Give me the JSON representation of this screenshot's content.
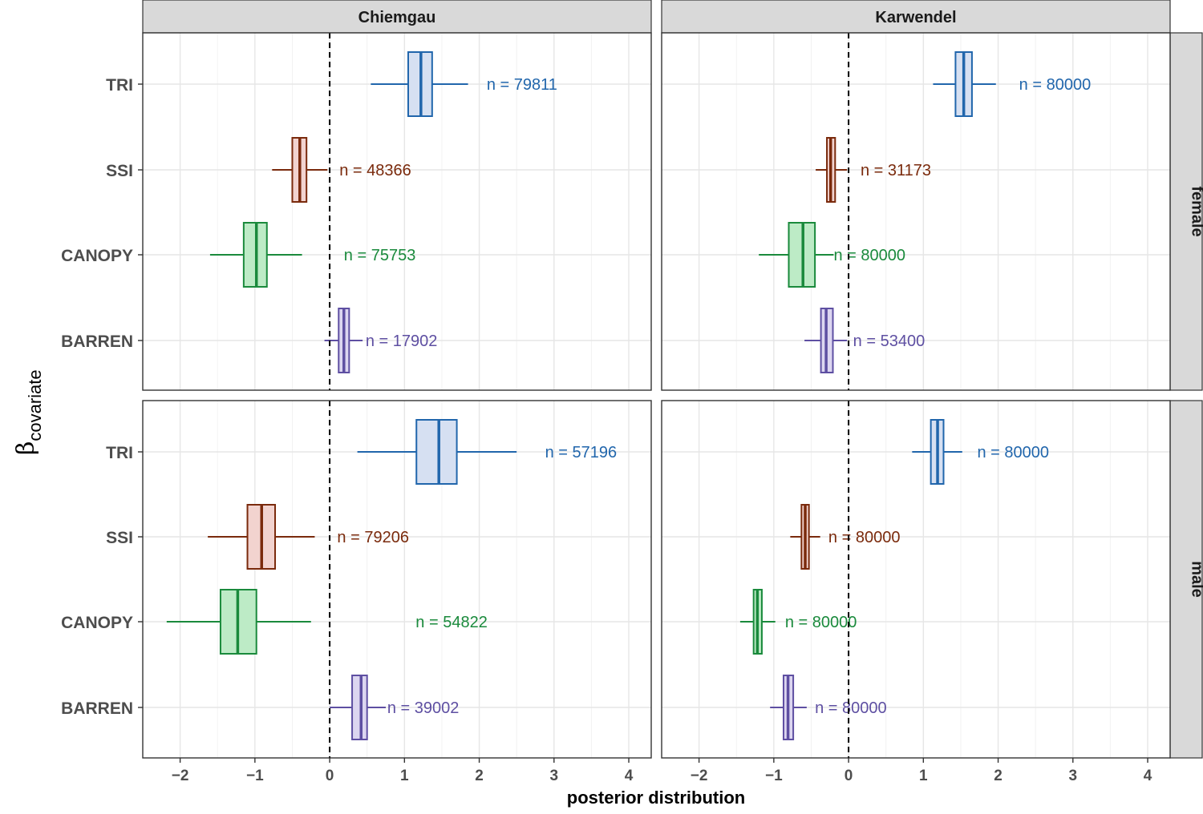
{
  "chart_data": {
    "type": "boxplot",
    "xlabel": "posterior distribution",
    "ylabel": "β",
    "ylabel_subscript": "covariate",
    "xlim": [
      -2.5,
      4.3
    ],
    "xticks": [
      -2,
      -1,
      0,
      1,
      2,
      3,
      4
    ],
    "xtick_labels": [
      "−2",
      "−1",
      "0",
      "1",
      "2",
      "3",
      "4"
    ],
    "reference_line_x": 0,
    "columns": [
      "Chiemgau",
      "Karwendel"
    ],
    "rows": [
      "female",
      "male"
    ],
    "categories": [
      "TRI",
      "SSI",
      "CANOPY",
      "BARREN"
    ],
    "colors": {
      "TRI": {
        "line": "#2166ac",
        "fill": "#d6e0f2"
      },
      "SSI": {
        "line": "#7a2a0c",
        "fill": "#f2d3cf"
      },
      "CANOPY": {
        "line": "#1a8a3c",
        "fill": "#bdebc6"
      },
      "BARREN": {
        "line": "#5e4fa2",
        "fill": "#dcd6f0"
      }
    },
    "panels": [
      {
        "column": "Chiemgau",
        "row": "female",
        "boxes": [
          {
            "category": "TRI",
            "whisker_low": 0.55,
            "q1": 1.05,
            "median": 1.22,
            "q3": 1.37,
            "whisker_high": 1.85,
            "n_label": "n = 79811",
            "n_x": 2.1
          },
          {
            "category": "SSI",
            "whisker_low": -0.77,
            "q1": -0.5,
            "median": -0.4,
            "q3": -0.31,
            "whisker_high": -0.03,
            "n_label": "n = 48366",
            "n_x": 0.13
          },
          {
            "category": "CANOPY",
            "whisker_low": -1.6,
            "q1": -1.15,
            "median": -0.98,
            "q3": -0.84,
            "whisker_high": -0.37,
            "n_label": "n = 75753",
            "n_x": 0.19
          },
          {
            "category": "BARREN",
            "whisker_low": -0.07,
            "q1": 0.12,
            "median": 0.19,
            "q3": 0.26,
            "whisker_high": 0.44,
            "n_label": "n = 17902",
            "n_x": 0.48
          }
        ]
      },
      {
        "column": "Karwendel",
        "row": "female",
        "boxes": [
          {
            "category": "TRI",
            "whisker_low": 1.13,
            "q1": 1.43,
            "median": 1.54,
            "q3": 1.65,
            "whisker_high": 1.97,
            "n_label": "n = 80000",
            "n_x": 2.28
          },
          {
            "category": "SSI",
            "whisker_low": -0.44,
            "q1": -0.29,
            "median": -0.24,
            "q3": -0.18,
            "whisker_high": -0.02,
            "n_label": "n = 31173",
            "n_x": 0.16
          },
          {
            "category": "CANOPY",
            "whisker_low": -1.2,
            "q1": -0.8,
            "median": -0.61,
            "q3": -0.45,
            "whisker_high": -0.2,
            "n_label": "n = 80000",
            "n_x": -0.2
          },
          {
            "category": "BARREN",
            "whisker_low": -0.59,
            "q1": -0.37,
            "median": -0.3,
            "q3": -0.21,
            "whisker_high": -0.02,
            "n_label": "n = 53400",
            "n_x": 0.06
          }
        ]
      },
      {
        "column": "Chiemgau",
        "row": "male",
        "boxes": [
          {
            "category": "TRI",
            "whisker_low": 0.37,
            "q1": 1.16,
            "median": 1.46,
            "q3": 1.7,
            "whisker_high": 2.5,
            "n_label": "n = 57196",
            "n_x": 2.88
          },
          {
            "category": "SSI",
            "whisker_low": -1.63,
            "q1": -1.1,
            "median": -0.91,
            "q3": -0.73,
            "whisker_high": -0.2,
            "n_label": "n = 79206",
            "n_x": 0.1
          },
          {
            "category": "CANOPY",
            "whisker_low": -2.18,
            "q1": -1.46,
            "median": -1.23,
            "q3": -0.98,
            "whisker_high": -0.25,
            "n_label": "n = 54822",
            "n_x": 1.15
          },
          {
            "category": "BARREN",
            "whisker_low": 0.0,
            "q1": 0.3,
            "median": 0.42,
            "q3": 0.5,
            "whisker_high": 0.75,
            "n_label": "n = 39002",
            "n_x": 0.77
          }
        ]
      },
      {
        "column": "Karwendel",
        "row": "male",
        "boxes": [
          {
            "category": "TRI",
            "whisker_low": 0.85,
            "q1": 1.1,
            "median": 1.19,
            "q3": 1.27,
            "whisker_high": 1.52,
            "n_label": "n = 80000",
            "n_x": 1.72
          },
          {
            "category": "SSI",
            "whisker_low": -0.78,
            "q1": -0.63,
            "median": -0.58,
            "q3": -0.53,
            "whisker_high": -0.38,
            "n_label": "n = 80000",
            "n_x": -0.27
          },
          {
            "category": "CANOPY",
            "whisker_low": -1.45,
            "q1": -1.27,
            "median": -1.22,
            "q3": -1.16,
            "whisker_high": -0.98,
            "n_label": "n = 80000",
            "n_x": -0.85
          },
          {
            "category": "BARREN",
            "whisker_low": -1.05,
            "q1": -0.87,
            "median": -0.81,
            "q3": -0.74,
            "whisker_high": -0.56,
            "n_label": "n = 80000",
            "n_x": -0.45
          }
        ]
      }
    ]
  }
}
